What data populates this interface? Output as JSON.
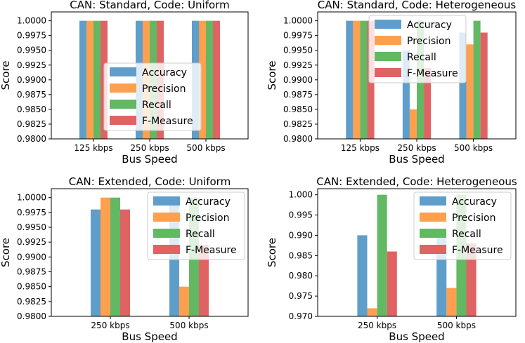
{
  "chart_data": [
    {
      "type": "bar",
      "title": "CAN: Standard, Code: Uniform",
      "xlabel": "Bus Speed",
      "ylabel": "Score",
      "categories": [
        "125 kbps",
        "250 kbps",
        "500 kbps"
      ],
      "ylim": [
        0.98,
        1.0015
      ],
      "yticks": [
        "0.9800",
        "0.9825",
        "0.9850",
        "0.9875",
        "0.9900",
        "0.9925",
        "0.9950",
        "0.9975",
        "1.0000"
      ],
      "legend_position": "center",
      "series": [
        {
          "name": "Accuracy",
          "values": [
            1.0,
            1.0,
            1.0
          ]
        },
        {
          "name": "Precision",
          "values": [
            1.0,
            1.0,
            1.0
          ]
        },
        {
          "name": "Recall",
          "values": [
            1.0,
            1.0,
            1.0
          ]
        },
        {
          "name": "F-Measure",
          "values": [
            1.0,
            1.0,
            1.0
          ]
        }
      ]
    },
    {
      "type": "bar",
      "title": "CAN: Standard, Code: Heterogeneous",
      "xlabel": "Bus Speed",
      "ylabel": "Score",
      "categories": [
        "125 kbps",
        "250 kbps",
        "500 kbps"
      ],
      "ylim": [
        0.98,
        1.0015
      ],
      "yticks": [
        "0.9800",
        "0.9825",
        "0.9850",
        "0.9875",
        "0.9900",
        "0.9925",
        "0.9950",
        "0.9975",
        "1.0000"
      ],
      "legend_position": "top-center",
      "series": [
        {
          "name": "Accuracy",
          "values": [
            1.0,
            0.995,
            0.998
          ]
        },
        {
          "name": "Precision",
          "values": [
            1.0,
            0.985,
            0.996
          ]
        },
        {
          "name": "Recall",
          "values": [
            1.0,
            1.0,
            1.0
          ]
        },
        {
          "name": "F-Measure",
          "values": [
            1.0,
            0.992,
            0.998
          ]
        }
      ]
    },
    {
      "type": "bar",
      "title": "CAN: Extended, Code: Uniform",
      "xlabel": "Bus Speed",
      "ylabel": "Score",
      "categories": [
        "250 kbps",
        "500 kbps"
      ],
      "ylim": [
        0.98,
        1.0015
      ],
      "yticks": [
        "0.9800",
        "0.9825",
        "0.9850",
        "0.9875",
        "0.9900",
        "0.9925",
        "0.9950",
        "0.9975",
        "1.0000"
      ],
      "legend_position": "top-right",
      "series": [
        {
          "name": "Accuracy",
          "values": [
            0.998,
            0.999
          ]
        },
        {
          "name": "Precision",
          "values": [
            1.0,
            0.985
          ]
        },
        {
          "name": "Recall",
          "values": [
            1.0,
            1.0
          ]
        },
        {
          "name": "F-Measure",
          "values": [
            0.998,
            0.992
          ]
        }
      ]
    },
    {
      "type": "bar",
      "title": "CAN: Extended, Code: Heterogeneous",
      "xlabel": "Bus Speed",
      "ylabel": "Score",
      "categories": [
        "250 kbps",
        "500 kbps"
      ],
      "ylim": [
        0.97,
        1.0015
      ],
      "yticks": [
        "0.970",
        "0.975",
        "0.980",
        "0.985",
        "0.990",
        "0.995",
        "1.000"
      ],
      "legend_position": "top-right",
      "series": [
        {
          "name": "Accuracy",
          "values": [
            0.99,
            0.991
          ]
        },
        {
          "name": "Precision",
          "values": [
            0.972,
            0.977
          ]
        },
        {
          "name": "Recall",
          "values": [
            1.0,
            1.0
          ]
        },
        {
          "name": "F-Measure",
          "values": [
            0.986,
            0.988
          ]
        }
      ]
    }
  ],
  "colors": {
    "Accuracy": "#5f9ecb",
    "Precision": "#ffa04f",
    "Recall": "#63b863",
    "F-Measure": "#e06363"
  }
}
